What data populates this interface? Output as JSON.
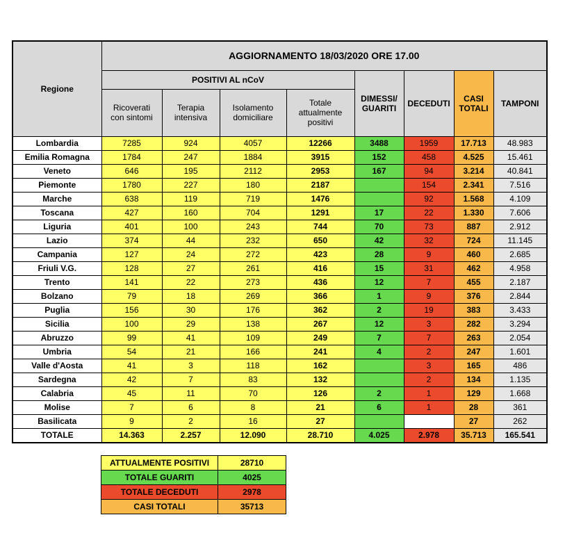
{
  "table": {
    "title": "AGGIORNAMENTO 18/03/2020 ORE 17.00",
    "region_header": "Regione",
    "group_header": "POSITIVI AL nCoV",
    "sub_headers": [
      "Ricoverati con sintomi",
      "Terapia intensiva",
      "Isolamento domiciliare",
      "Totale attualmente positivi"
    ],
    "other_headers": [
      "DIMESSI/ GUARITI",
      "DECEDUTI",
      "CASI TOTALI",
      "TAMPONI"
    ],
    "rows": [
      [
        "Lombardia",
        "7285",
        "924",
        "4057",
        "12266",
        "3488",
        "1959",
        "17.713",
        "48.983"
      ],
      [
        "Emilia Romagna",
        "1784",
        "247",
        "1884",
        "3915",
        "152",
        "458",
        "4.525",
        "15.461"
      ],
      [
        "Veneto",
        "646",
        "195",
        "2112",
        "2953",
        "167",
        "94",
        "3.214",
        "40.841"
      ],
      [
        "Piemonte",
        "1780",
        "227",
        "180",
        "2187",
        null,
        "154",
        "2.341",
        "7.516"
      ],
      [
        "Marche",
        "638",
        "119",
        "719",
        "1476",
        null,
        "92",
        "1.568",
        "4.109"
      ],
      [
        "Toscana",
        "427",
        "160",
        "704",
        "1291",
        "17",
        "22",
        "1.330",
        "7.606"
      ],
      [
        "Liguria",
        "401",
        "100",
        "243",
        "744",
        "70",
        "73",
        "887",
        "2.912"
      ],
      [
        "Lazio",
        "374",
        "44",
        "232",
        "650",
        "42",
        "32",
        "724",
        "11.145"
      ],
      [
        "Campania",
        "127",
        "24",
        "272",
        "423",
        "28",
        "9",
        "460",
        "2.685"
      ],
      [
        "Friuli V.G.",
        "128",
        "27",
        "261",
        "416",
        "15",
        "31",
        "462",
        "4.958"
      ],
      [
        "Trento",
        "141",
        "22",
        "273",
        "436",
        "12",
        "7",
        "455",
        "2.187"
      ],
      [
        "Bolzano",
        "79",
        "18",
        "269",
        "366",
        "1",
        "9",
        "376",
        "2.844"
      ],
      [
        "Puglia",
        "156",
        "30",
        "176",
        "362",
        "2",
        "19",
        "383",
        "3.433"
      ],
      [
        "Sicilia",
        "100",
        "29",
        "138",
        "267",
        "12",
        "3",
        "282",
        "3.294"
      ],
      [
        "Abruzzo",
        "99",
        "41",
        "109",
        "249",
        "7",
        "7",
        "263",
        "2.054"
      ],
      [
        "Umbria",
        "54",
        "21",
        "166",
        "241",
        "4",
        "2",
        "247",
        "1.601"
      ],
      [
        "Valle d'Aosta",
        "41",
        "3",
        "118",
        "162",
        null,
        "3",
        "165",
        "486"
      ],
      [
        "Sardegna",
        "42",
        "7",
        "83",
        "132",
        null,
        "2",
        "134",
        "1.135"
      ],
      [
        "Calabria",
        "45",
        "11",
        "70",
        "126",
        "2",
        "1",
        "129",
        "1.668"
      ],
      [
        "Molise",
        "7",
        "6",
        "8",
        "21",
        "6",
        "1",
        "28",
        "361"
      ],
      [
        "Basilicata",
        "9",
        "2",
        "16",
        "27",
        null,
        null,
        "27",
        "262"
      ]
    ],
    "total": [
      "TOTALE",
      "14.363",
      "2.257",
      "12.090",
      "28.710",
      "4.025",
      "2.978",
      "35.713",
      "165.541"
    ]
  },
  "summary": [
    [
      "ATTUALMENTE POSITIVI",
      "28710"
    ],
    [
      "TOTALE GUARITI",
      "4025"
    ],
    [
      "TOTALE DECEDUTI",
      "2978"
    ],
    [
      "CASI TOTALI",
      "35713"
    ]
  ]
}
